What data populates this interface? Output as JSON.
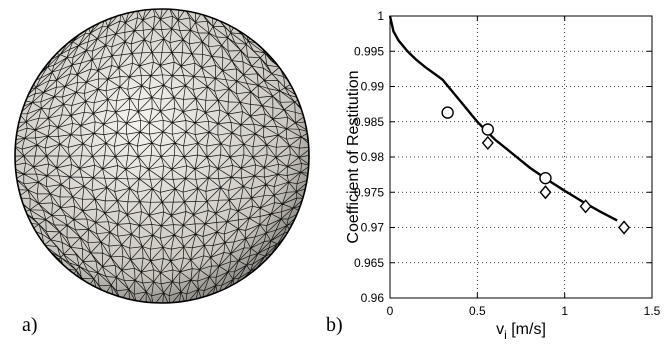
{
  "panels": {
    "a": "a)",
    "b": "b)"
  },
  "sphere": {
    "description_shown": false,
    "fill_light": "#f5f3ee",
    "fill_dark": "#6d6b66",
    "mesh_color": "#111111"
  },
  "chart_data": {
    "type": "scatter",
    "xlabel": "v",
    "xlabel_sub": "i",
    "xlabel_unit": " [m/s]",
    "ylabel": "Coefficient of Restitution",
    "xlim": [
      0,
      1.5
    ],
    "ylim": [
      0.96,
      1.0
    ],
    "x_ticks": [
      0,
      0.5,
      1,
      1.5
    ],
    "x_tick_labels": [
      "0",
      "0.5",
      "1",
      "1.5"
    ],
    "y_ticks": [
      0.96,
      0.965,
      0.97,
      0.975,
      0.98,
      0.985,
      0.99,
      0.995,
      1.0
    ],
    "y_tick_labels": [
      "0.96",
      "0.965",
      "0.97",
      "0.975",
      "0.98",
      "0.985",
      "0.99",
      "0.995",
      "1"
    ],
    "grid": true,
    "series": [
      {
        "marker": "circle",
        "x": [
          0.33,
          0.56,
          0.89
        ],
        "y": [
          0.9863,
          0.9839,
          0.977
        ]
      },
      {
        "marker": "diamond",
        "x": [
          0.56,
          0.89,
          1.12,
          1.34
        ],
        "y": [
          0.982,
          0.975,
          0.973,
          0.97
        ]
      },
      {
        "marker": "line",
        "x": [
          0.0,
          0.02,
          0.05,
          0.1,
          0.15,
          0.2,
          0.3,
          0.4,
          0.5,
          0.6,
          0.7,
          0.8,
          0.9,
          1.0,
          1.1,
          1.2,
          1.3
        ],
        "y": [
          1.0,
          0.9978,
          0.9965,
          0.995,
          0.9938,
          0.9928,
          0.991,
          0.988,
          0.985,
          0.9825,
          0.9805,
          0.9785,
          0.9768,
          0.9752,
          0.9737,
          0.9723,
          0.971
        ]
      }
    ]
  }
}
